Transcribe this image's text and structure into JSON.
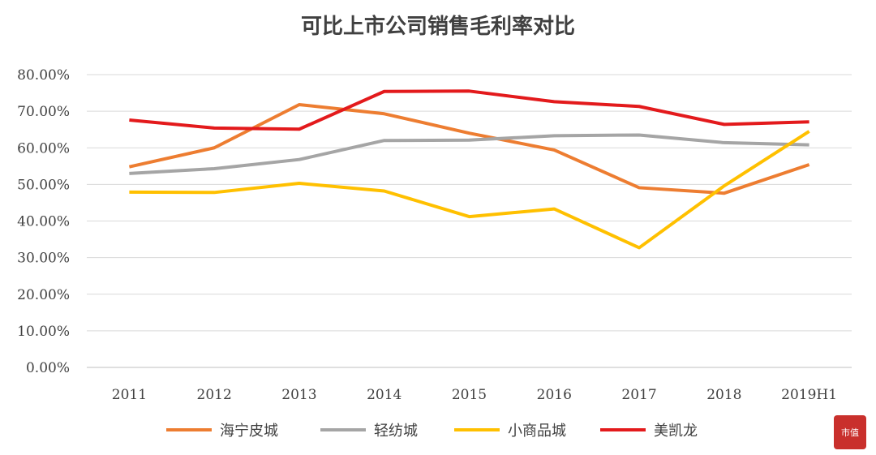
{
  "chart_data": {
    "type": "line",
    "title": "可比上市公司销售毛利率对比",
    "categories": [
      "2011",
      "2012",
      "2013",
      "2014",
      "2015",
      "2016",
      "2017",
      "2018",
      "2019H1"
    ],
    "ylim": [
      0,
      80
    ],
    "yticks": [
      "0.00%",
      "10.00%",
      "20.00%",
      "30.00%",
      "40.00%",
      "50.00%",
      "60.00%",
      "70.00%",
      "80.00%"
    ],
    "grid": true,
    "legend_position": "bottom",
    "series": [
      {
        "name": "海宁皮城",
        "color": "#ed7d31",
        "values": [
          54.8,
          60.0,
          71.8,
          69.3,
          64.0,
          59.4,
          49.1,
          47.6,
          55.4
        ]
      },
      {
        "name": "轻纺城",
        "color": "#a5a5a5",
        "values": [
          53.0,
          54.3,
          56.8,
          62.0,
          62.1,
          63.3,
          63.5,
          61.4,
          60.8
        ]
      },
      {
        "name": "小商品城",
        "color": "#ffc000",
        "values": [
          47.9,
          47.8,
          50.3,
          48.2,
          41.2,
          43.3,
          32.7,
          49.6,
          64.5
        ]
      },
      {
        "name": "美凯龙",
        "color": "#e31a1c",
        "values": [
          67.6,
          65.4,
          65.1,
          75.4,
          75.5,
          72.6,
          71.3,
          66.4,
          67.1
        ]
      }
    ]
  },
  "logo_text": "市值"
}
